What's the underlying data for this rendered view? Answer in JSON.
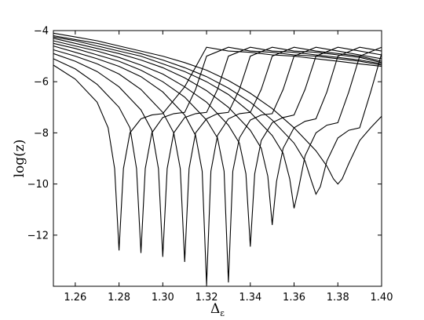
{
  "chart_data": {
    "type": "line",
    "title": "",
    "xlabel": "Δ",
    "xlabel_sub": "ε",
    "ylabel": "log(z)",
    "xlim": [
      1.25,
      1.4
    ],
    "ylim": [
      -14,
      -4
    ],
    "xticks": [
      1.26,
      1.28,
      1.3,
      1.32,
      1.34,
      1.36,
      1.38,
      1.4
    ],
    "xtick_labels": [
      "1.26",
      "1.28",
      "1.30",
      "1.32",
      "1.34",
      "1.36",
      "1.38",
      "1.40"
    ],
    "yticks": [
      -4,
      -6,
      -8,
      -10,
      -12
    ],
    "ytick_labels": [
      "−4",
      "−6",
      "−8",
      "−10",
      "−12"
    ],
    "grid": false,
    "legend": "none",
    "series": [
      {
        "x": [
          1.25,
          1.26,
          1.27,
          1.275,
          1.278,
          1.28,
          1.282,
          1.285,
          1.29,
          1.295,
          1.3,
          1.31,
          1.32,
          1.33,
          1.34,
          1.35,
          1.36,
          1.37,
          1.38,
          1.39,
          1.4
        ],
        "y": [
          -5.35,
          -5.9,
          -6.8,
          -7.8,
          -9.4,
          -12.6,
          -9.4,
          -8.0,
          -7.45,
          -7.3,
          -7.25,
          -6.2,
          -4.65,
          -4.8,
          -4.85,
          -4.95,
          -5.0,
          -5.1,
          -5.2,
          -5.3,
          -5.4
        ]
      },
      {
        "x": [
          1.25,
          1.26,
          1.27,
          1.28,
          1.285,
          1.288,
          1.29,
          1.292,
          1.295,
          1.3,
          1.305,
          1.31,
          1.315,
          1.32,
          1.33,
          1.34,
          1.35,
          1.36,
          1.37,
          1.38,
          1.39,
          1.4
        ],
        "y": [
          -5.1,
          -5.5,
          -6.1,
          -7.0,
          -7.8,
          -9.4,
          -12.7,
          -9.4,
          -8.0,
          -7.4,
          -7.25,
          -7.2,
          -6.3,
          -5.0,
          -4.65,
          -4.8,
          -4.85,
          -4.95,
          -5.0,
          -5.1,
          -5.2,
          -5.35
        ]
      },
      {
        "x": [
          1.25,
          1.26,
          1.27,
          1.28,
          1.29,
          1.295,
          1.298,
          1.3,
          1.302,
          1.305,
          1.31,
          1.315,
          1.32,
          1.325,
          1.33,
          1.34,
          1.35,
          1.36,
          1.37,
          1.38,
          1.39,
          1.4
        ],
        "y": [
          -4.9,
          -5.2,
          -5.6,
          -6.2,
          -7.1,
          -7.9,
          -9.4,
          -12.85,
          -9.4,
          -8.0,
          -7.4,
          -7.25,
          -7.2,
          -6.3,
          -5.0,
          -4.65,
          -4.8,
          -4.85,
          -4.95,
          -5.05,
          -5.15,
          -5.3
        ]
      },
      {
        "x": [
          1.25,
          1.26,
          1.27,
          1.28,
          1.29,
          1.3,
          1.305,
          1.308,
          1.31,
          1.312,
          1.315,
          1.32,
          1.325,
          1.33,
          1.335,
          1.34,
          1.35,
          1.36,
          1.37,
          1.38,
          1.39,
          1.4
        ],
        "y": [
          -4.75,
          -5.0,
          -5.3,
          -5.7,
          -6.3,
          -7.2,
          -8.0,
          -9.4,
          -13.05,
          -9.4,
          -8.0,
          -7.45,
          -7.25,
          -7.2,
          -6.3,
          -5.0,
          -4.65,
          -4.8,
          -4.85,
          -4.95,
          -5.05,
          -5.25
        ]
      },
      {
        "x": [
          1.25,
          1.26,
          1.27,
          1.28,
          1.29,
          1.3,
          1.31,
          1.315,
          1.318,
          1.32,
          1.322,
          1.325,
          1.33,
          1.335,
          1.34,
          1.345,
          1.35,
          1.36,
          1.37,
          1.38,
          1.39,
          1.4
        ],
        "y": [
          -4.6,
          -4.85,
          -5.1,
          -5.4,
          -5.8,
          -6.4,
          -7.3,
          -8.1,
          -9.5,
          -13.95,
          -9.5,
          -8.1,
          -7.45,
          -7.25,
          -7.2,
          -6.3,
          -5.0,
          -4.65,
          -4.8,
          -4.9,
          -5.0,
          -5.2
        ]
      },
      {
        "x": [
          1.25,
          1.26,
          1.27,
          1.28,
          1.29,
          1.3,
          1.31,
          1.32,
          1.325,
          1.328,
          1.33,
          1.332,
          1.335,
          1.34,
          1.345,
          1.35,
          1.355,
          1.36,
          1.37,
          1.38,
          1.39,
          1.4
        ],
        "y": [
          -4.5,
          -4.7,
          -4.95,
          -5.2,
          -5.55,
          -6.0,
          -6.6,
          -7.5,
          -8.2,
          -9.5,
          -13.85,
          -9.5,
          -8.2,
          -7.5,
          -7.3,
          -7.25,
          -6.3,
          -5.0,
          -4.65,
          -4.8,
          -4.95,
          -5.1
        ]
      },
      {
        "x": [
          1.25,
          1.26,
          1.27,
          1.28,
          1.29,
          1.3,
          1.31,
          1.32,
          1.33,
          1.335,
          1.338,
          1.34,
          1.342,
          1.345,
          1.35,
          1.355,
          1.36,
          1.365,
          1.37,
          1.38,
          1.39,
          1.4
        ],
        "y": [
          -4.4,
          -4.6,
          -4.8,
          -5.05,
          -5.35,
          -5.7,
          -6.2,
          -6.8,
          -7.7,
          -8.4,
          -9.6,
          -12.45,
          -9.6,
          -8.3,
          -7.6,
          -7.4,
          -7.3,
          -6.3,
          -5.0,
          -4.65,
          -4.8,
          -4.95
        ]
      },
      {
        "x": [
          1.25,
          1.26,
          1.27,
          1.28,
          1.29,
          1.3,
          1.31,
          1.32,
          1.33,
          1.34,
          1.345,
          1.348,
          1.35,
          1.352,
          1.355,
          1.36,
          1.365,
          1.37,
          1.375,
          1.38,
          1.39,
          1.4
        ],
        "y": [
          -4.3,
          -4.5,
          -4.7,
          -4.9,
          -5.15,
          -5.45,
          -5.85,
          -6.35,
          -7.0,
          -7.9,
          -8.6,
          -9.7,
          -11.6,
          -9.9,
          -8.6,
          -7.8,
          -7.55,
          -7.45,
          -6.4,
          -5.0,
          -4.65,
          -4.8
        ]
      },
      {
        "x": [
          1.25,
          1.26,
          1.27,
          1.28,
          1.29,
          1.3,
          1.31,
          1.32,
          1.33,
          1.34,
          1.35,
          1.355,
          1.358,
          1.36,
          1.362,
          1.365,
          1.37,
          1.375,
          1.38,
          1.385,
          1.39,
          1.4
        ],
        "y": [
          -4.25,
          -4.4,
          -4.6,
          -4.8,
          -5.0,
          -5.3,
          -5.6,
          -6.0,
          -6.5,
          -7.2,
          -8.1,
          -8.8,
          -9.8,
          -10.95,
          -10.2,
          -8.9,
          -8.0,
          -7.7,
          -7.6,
          -6.4,
          -5.0,
          -4.65
        ]
      },
      {
        "x": [
          1.25,
          1.26,
          1.27,
          1.28,
          1.29,
          1.3,
          1.31,
          1.32,
          1.33,
          1.34,
          1.35,
          1.36,
          1.365,
          1.368,
          1.37,
          1.372,
          1.375,
          1.38,
          1.385,
          1.39,
          1.395,
          1.4
        ],
        "y": [
          -4.2,
          -4.35,
          -4.5,
          -4.7,
          -4.9,
          -5.15,
          -5.45,
          -5.8,
          -6.25,
          -6.8,
          -7.5,
          -8.4,
          -9.1,
          -9.9,
          -10.4,
          -10.1,
          -9.1,
          -8.2,
          -7.9,
          -7.8,
          -6.4,
          -4.9
        ]
      },
      {
        "x": [
          1.25,
          1.26,
          1.27,
          1.28,
          1.29,
          1.3,
          1.31,
          1.32,
          1.33,
          1.34,
          1.35,
          1.36,
          1.37,
          1.375,
          1.378,
          1.38,
          1.382,
          1.385,
          1.39,
          1.395,
          1.4
        ],
        "y": [
          -4.1,
          -4.25,
          -4.4,
          -4.6,
          -4.8,
          -5.0,
          -5.25,
          -5.55,
          -5.95,
          -6.45,
          -7.05,
          -7.8,
          -8.7,
          -9.3,
          -9.8,
          -10.0,
          -9.8,
          -9.2,
          -8.3,
          -7.8,
          -7.35
        ]
      }
    ]
  }
}
